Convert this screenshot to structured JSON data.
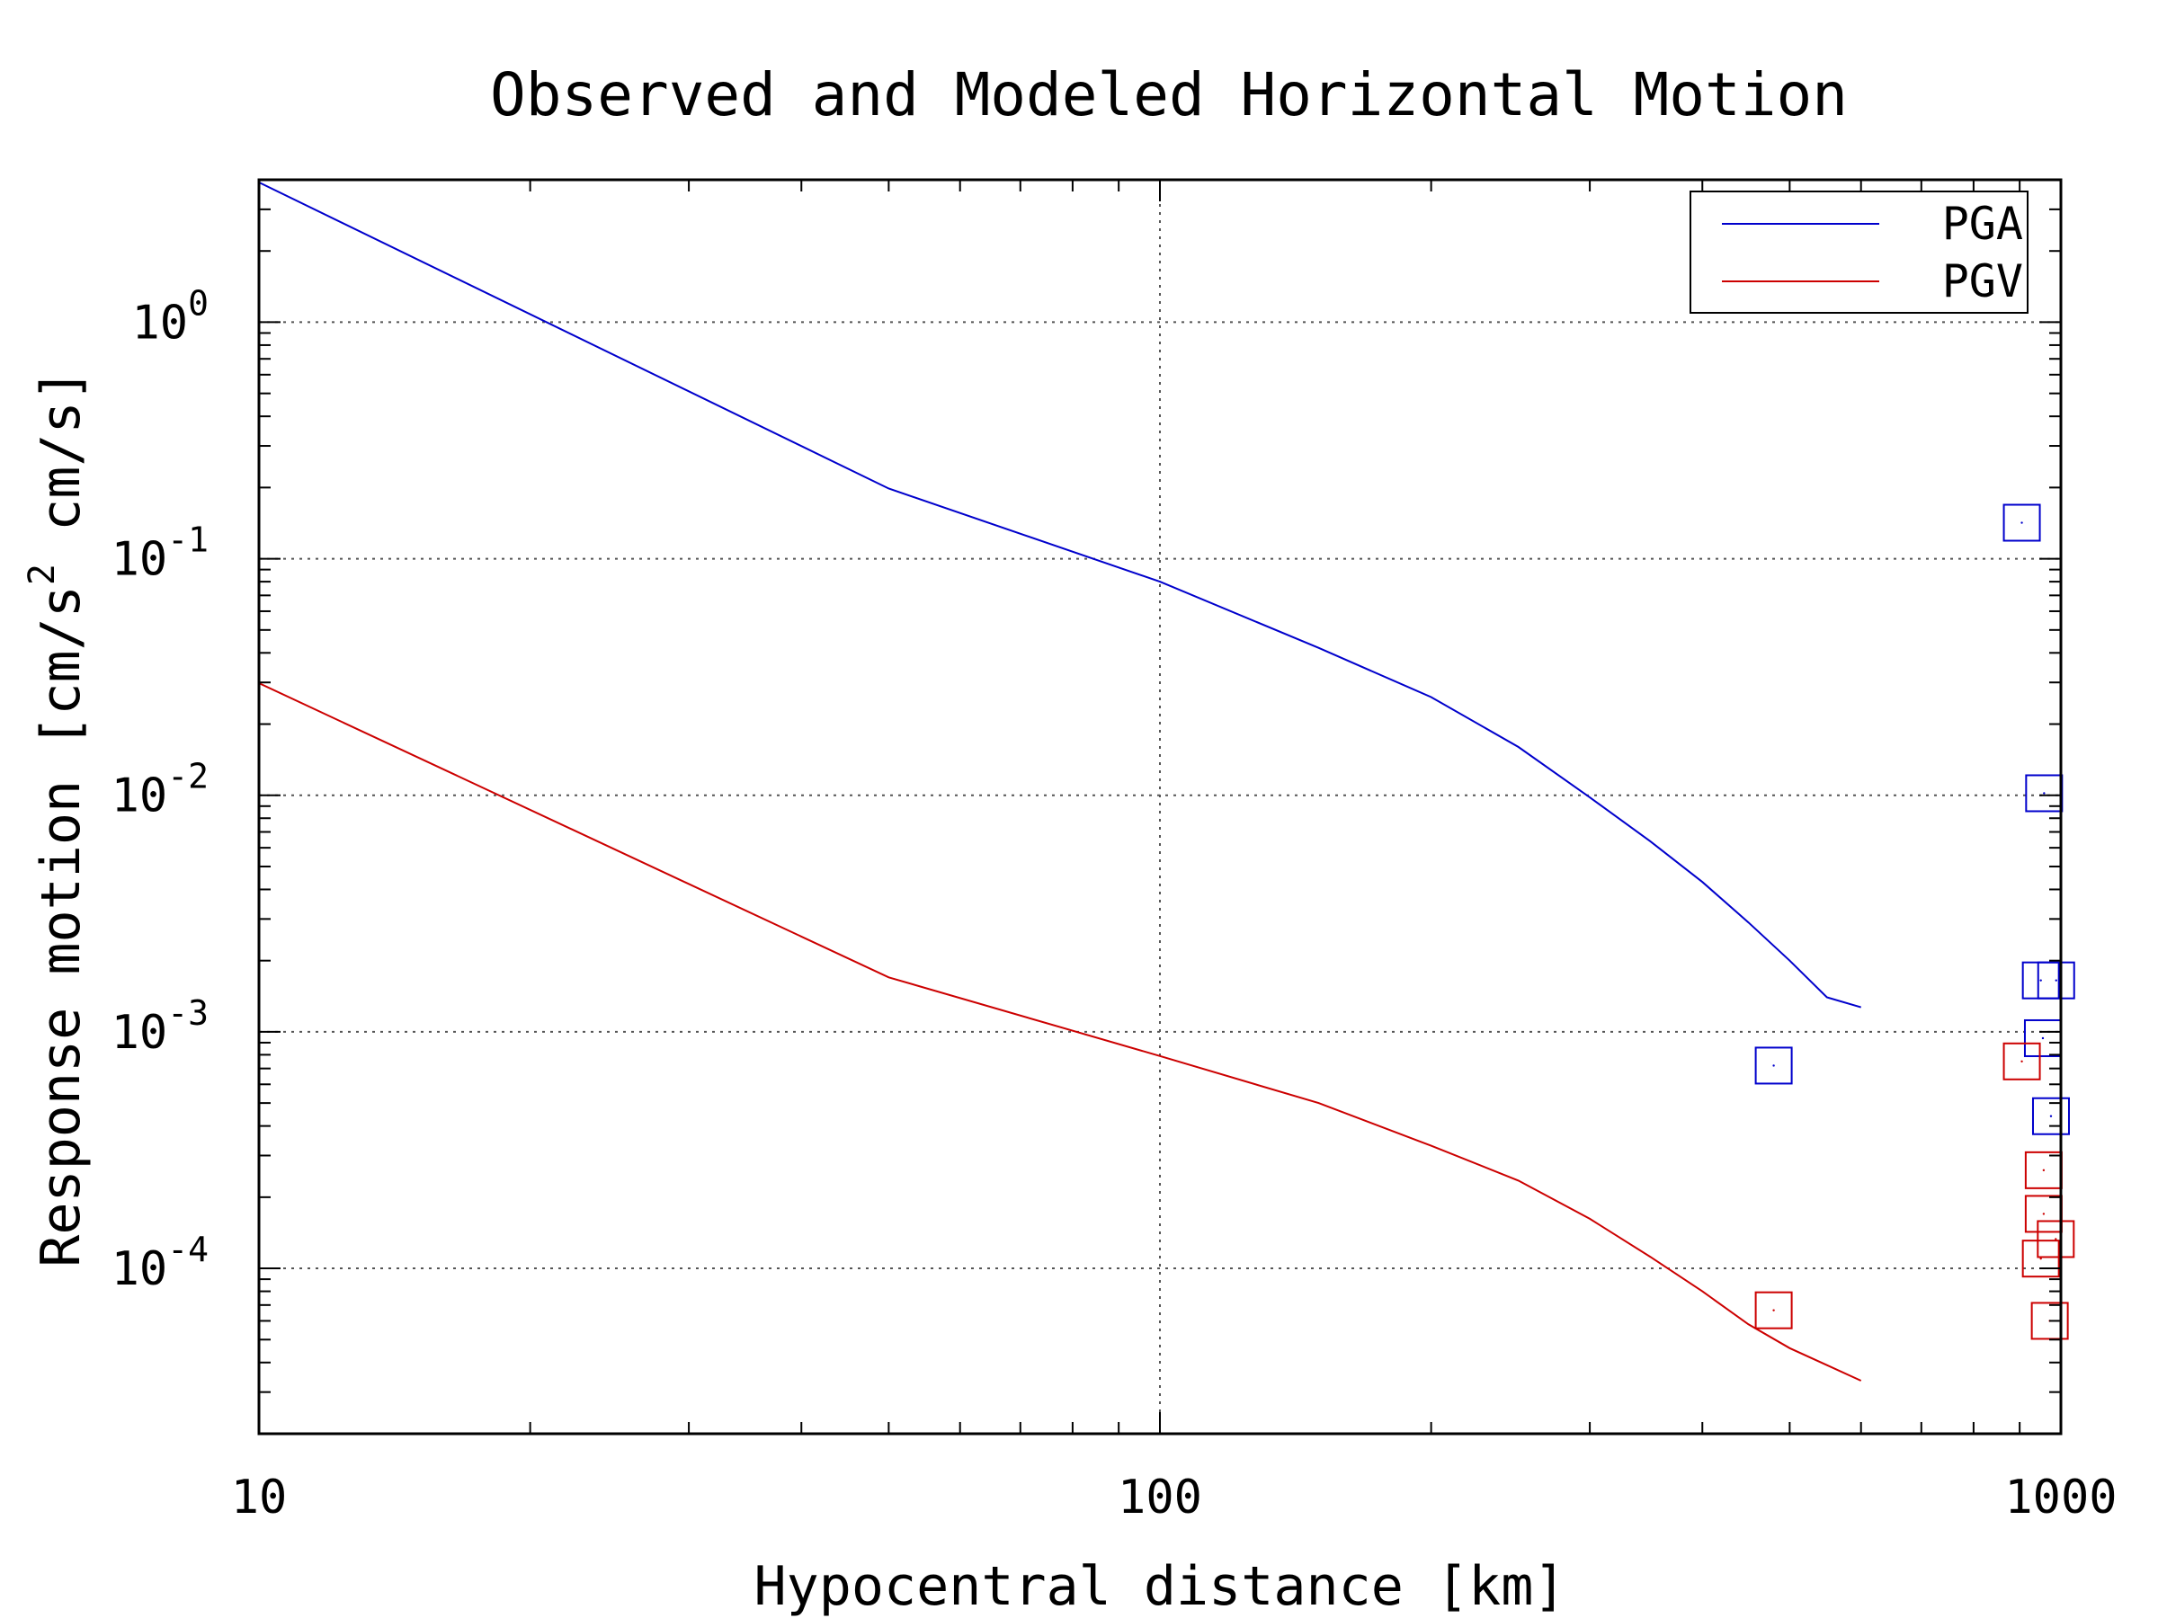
{
  "chart_data": {
    "type": "line",
    "title": "Observed and Modeled Horizontal Motion",
    "xlabel": "Hypocentral distance [km]",
    "ylabel_parts": {
      "pre": "Response motion [cm/s",
      "sup": "2",
      "post": "  cm/s]"
    },
    "x_scale": "log",
    "y_scale": "log",
    "xlim": [
      10,
      1000
    ],
    "ylim": [
      2e-05,
      4
    ],
    "x_ticks": [
      {
        "value": 10,
        "label": "10"
      },
      {
        "value": 100,
        "label": "100"
      },
      {
        "value": 1000,
        "label": "1000"
      }
    ],
    "y_ticks": [
      {
        "value": 1,
        "base": "10",
        "exp": "0"
      },
      {
        "value": 0.1,
        "base": "10",
        "exp": "-1"
      },
      {
        "value": 0.01,
        "base": "10",
        "exp": "-2"
      },
      {
        "value": 0.001,
        "base": "10",
        "exp": "-3"
      },
      {
        "value": 0.0001,
        "base": "10",
        "exp": "-4"
      }
    ],
    "grid": true,
    "legend_position": "top-right",
    "series": [
      {
        "name": "PGA",
        "kind": "line",
        "color": "#0000cc",
        "points": [
          [
            10,
            3.9
          ],
          [
            50,
            0.198
          ],
          [
            100,
            0.08
          ],
          [
            150,
            0.042
          ],
          [
            200,
            0.026
          ],
          [
            250,
            0.016
          ],
          [
            300,
            0.0098
          ],
          [
            350,
            0.0064
          ],
          [
            400,
            0.0043
          ],
          [
            450,
            0.0029
          ],
          [
            500,
            0.002
          ],
          [
            550,
            0.0014
          ],
          [
            600,
            0.00127
          ]
        ]
      },
      {
        "name": "PGV",
        "kind": "line",
        "color": "#cc0000",
        "points": [
          [
            10,
            0.0298
          ],
          [
            50,
            0.0017
          ],
          [
            100,
            0.00079
          ],
          [
            150,
            0.0005
          ],
          [
            200,
            0.00033
          ],
          [
            250,
            0.000235
          ],
          [
            300,
            0.000162
          ],
          [
            350,
            0.000112
          ],
          [
            400,
            8e-05
          ],
          [
            450,
            5.8e-05
          ],
          [
            500,
            4.6e-05
          ],
          [
            550,
            3.9e-05
          ],
          [
            600,
            3.35e-05
          ]
        ]
      },
      {
        "kind": "scatter",
        "color": "#0000cc",
        "points": [
          [
            480,
            0.00072
          ],
          [
            905,
            0.142
          ],
          [
            958,
            0.0102
          ],
          [
            950,
            0.00165
          ],
          [
            988,
            0.00165
          ],
          [
            955,
            0.00094
          ],
          [
            975,
            0.00044
          ]
        ]
      },
      {
        "kind": "scatter",
        "color": "#cc0000",
        "points": [
          [
            480,
            6.65e-05
          ],
          [
            905,
            0.00075
          ],
          [
            957,
            0.00026
          ],
          [
            957,
            0.00017
          ],
          [
            950,
            0.00011
          ],
          [
            987,
            0.000133
          ],
          [
            972,
            6e-05
          ]
        ]
      }
    ]
  }
}
